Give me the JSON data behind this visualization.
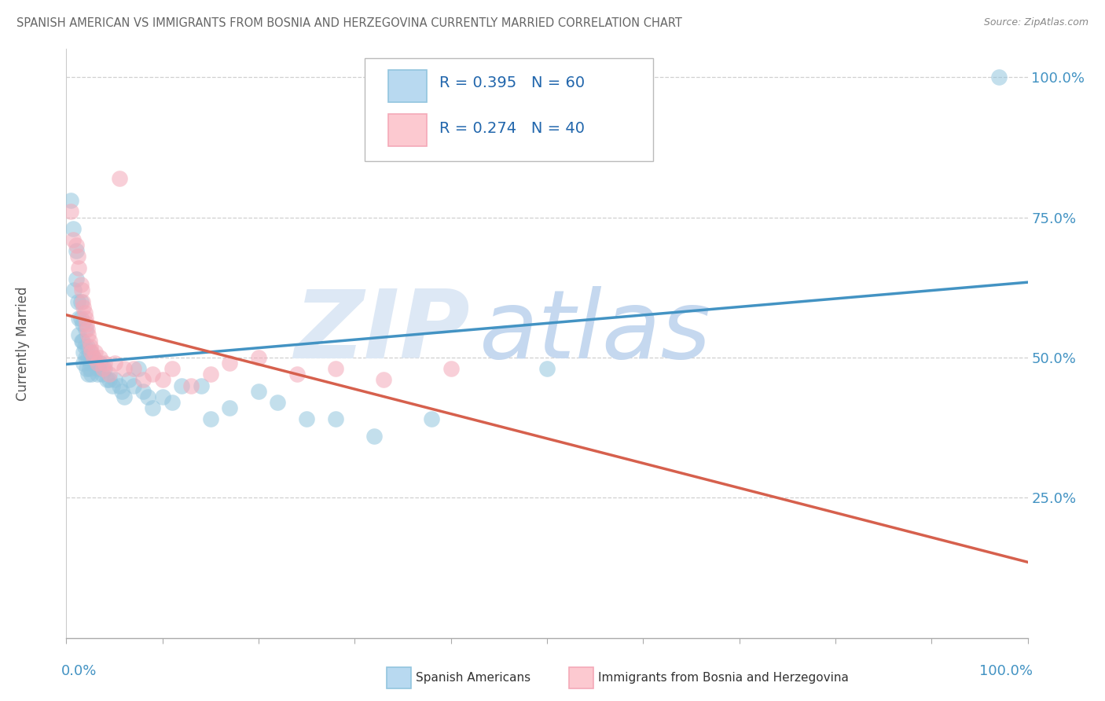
{
  "title": "SPANISH AMERICAN VS IMMIGRANTS FROM BOSNIA AND HERZEGOVINA CURRENTLY MARRIED CORRELATION CHART",
  "source": "Source: ZipAtlas.com",
  "ylabel": "Currently Married",
  "legend1_R": "0.395",
  "legend1_N": "60",
  "legend2_R": "0.274",
  "legend2_N": "40",
  "blue_scatter_color": "#92c5de",
  "pink_scatter_color": "#f4a9b8",
  "blue_line_color": "#4393c3",
  "pink_line_color": "#d6604d",
  "legend_blue_face": "#b8d9f0",
  "legend_pink_face": "#fcc9d0",
  "background_color": "#ffffff",
  "grid_color": "#d0d0d0",
  "title_color": "#666666",
  "axis_label_color": "#4393c3",
  "text_color_dark": "#2166ac",
  "watermark_zip_color": "#dde8f5",
  "watermark_atlas_color": "#c5d8ef",
  "blue_x": [
    0.005,
    0.007,
    0.008,
    0.01,
    0.01,
    0.012,
    0.013,
    0.013,
    0.015,
    0.015,
    0.016,
    0.017,
    0.017,
    0.018,
    0.018,
    0.019,
    0.02,
    0.02,
    0.021,
    0.022,
    0.023,
    0.023,
    0.024,
    0.025,
    0.025,
    0.026,
    0.028,
    0.03,
    0.032,
    0.033,
    0.035,
    0.037,
    0.04,
    0.042,
    0.045,
    0.048,
    0.05,
    0.055,
    0.058,
    0.06,
    0.065,
    0.07,
    0.075,
    0.08,
    0.085,
    0.09,
    0.1,
    0.11,
    0.12,
    0.14,
    0.15,
    0.17,
    0.2,
    0.22,
    0.25,
    0.28,
    0.32,
    0.38,
    0.5,
    0.97
  ],
  "blue_y": [
    0.78,
    0.73,
    0.62,
    0.69,
    0.64,
    0.6,
    0.57,
    0.54,
    0.6,
    0.57,
    0.53,
    0.56,
    0.53,
    0.51,
    0.49,
    0.52,
    0.55,
    0.5,
    0.48,
    0.52,
    0.5,
    0.47,
    0.48,
    0.51,
    0.49,
    0.47,
    0.5,
    0.49,
    0.47,
    0.48,
    0.49,
    0.47,
    0.48,
    0.46,
    0.46,
    0.45,
    0.46,
    0.45,
    0.44,
    0.43,
    0.46,
    0.45,
    0.48,
    0.44,
    0.43,
    0.41,
    0.43,
    0.42,
    0.45,
    0.45,
    0.39,
    0.41,
    0.44,
    0.42,
    0.39,
    0.39,
    0.36,
    0.39,
    0.48,
    1.0
  ],
  "pink_x": [
    0.005,
    0.007,
    0.01,
    0.012,
    0.013,
    0.015,
    0.016,
    0.017,
    0.018,
    0.019,
    0.02,
    0.021,
    0.022,
    0.023,
    0.024,
    0.025,
    0.026,
    0.028,
    0.03,
    0.032,
    0.035,
    0.038,
    0.04,
    0.045,
    0.05,
    0.055,
    0.06,
    0.07,
    0.08,
    0.09,
    0.1,
    0.11,
    0.13,
    0.15,
    0.17,
    0.2,
    0.24,
    0.28,
    0.33,
    0.4
  ],
  "pink_y": [
    0.76,
    0.71,
    0.7,
    0.68,
    0.66,
    0.63,
    0.62,
    0.6,
    0.59,
    0.58,
    0.57,
    0.56,
    0.55,
    0.54,
    0.53,
    0.52,
    0.51,
    0.5,
    0.51,
    0.49,
    0.5,
    0.48,
    0.49,
    0.47,
    0.49,
    0.82,
    0.48,
    0.48,
    0.46,
    0.47,
    0.46,
    0.48,
    0.45,
    0.47,
    0.49,
    0.5,
    0.47,
    0.48,
    0.46,
    0.48
  ]
}
